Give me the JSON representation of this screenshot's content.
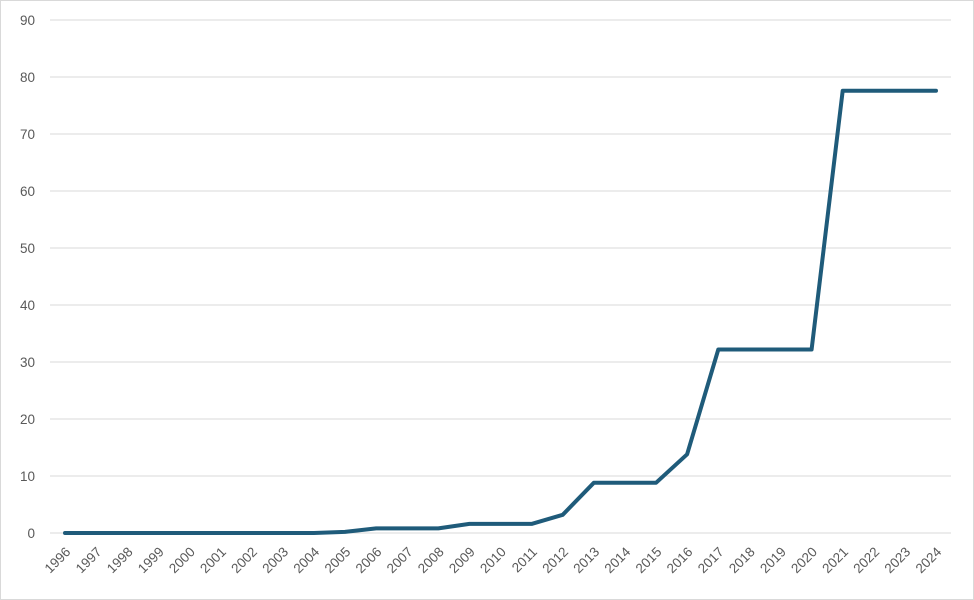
{
  "chart_data": {
    "type": "line",
    "title": "",
    "xlabel": "",
    "ylabel": "",
    "ylim": [
      0,
      90
    ],
    "y_ticks": [
      "0",
      "10",
      "20",
      "30",
      "40",
      "50",
      "60",
      "70",
      "80",
      "90"
    ],
    "grid": true,
    "legend": "none",
    "categories": [
      "1996",
      "1997",
      "1998",
      "1999",
      "2000",
      "2001",
      "2002",
      "2003",
      "2004",
      "2005",
      "2006",
      "2007",
      "2008",
      "2009",
      "2010",
      "2011",
      "2012",
      "2013",
      "2014",
      "2015",
      "2016",
      "2017",
      "2018",
      "2019",
      "2020",
      "2021",
      "2022",
      "2023",
      "2024"
    ],
    "series": [
      {
        "color": "#1f5b7a",
        "values": [
          0,
          0,
          0,
          0,
          0,
          0,
          0,
          0,
          0,
          0.2,
          0.8,
          0.8,
          0.8,
          1.6,
          1.6,
          1.6,
          3.2,
          8.8,
          8.8,
          8.8,
          13.8,
          32.2,
          32.2,
          32.2,
          32.2,
          77.6,
          77.6,
          77.6,
          77.6
        ]
      }
    ]
  }
}
